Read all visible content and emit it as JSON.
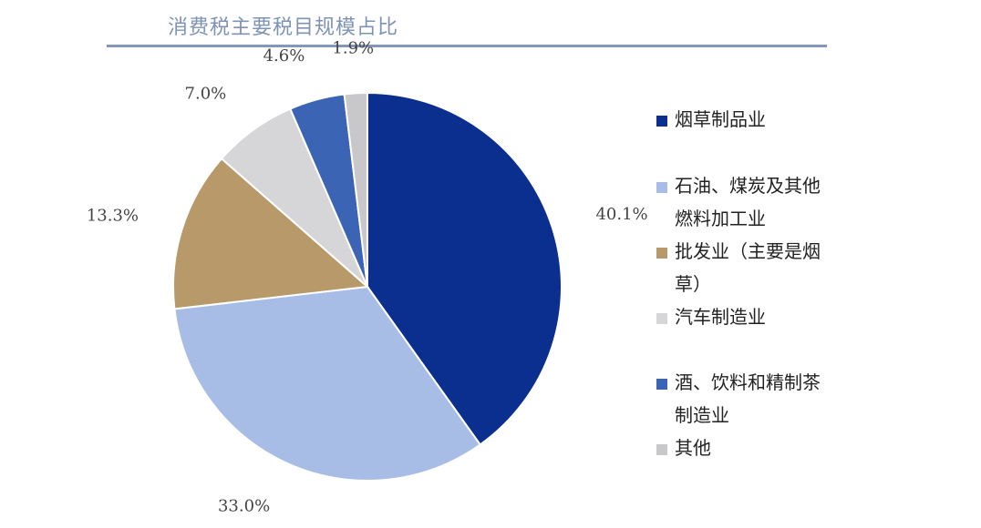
{
  "chart_data": {
    "type": "pie",
    "title": "消费税主要税目规模占比",
    "legend_position": "right",
    "slices": [
      {
        "label": "烟草制品业",
        "value": 40.1,
        "value_label": "40.1%",
        "color": "#0a2f8e"
      },
      {
        "label": "石油、煤炭及其他燃料加工业",
        "value": 33.0,
        "value_label": "33.0%",
        "color": "#a8bde6"
      },
      {
        "label": "批发业（主要是烟草）",
        "value": 13.3,
        "value_label": "13.3%",
        "color": "#b8996a"
      },
      {
        "label": "汽车制造业",
        "value": 7.0,
        "value_label": "7.0%",
        "color": "#d6d6d8"
      },
      {
        "label": "酒、饮料和精制茶制造业",
        "value": 4.6,
        "value_label": "4.6%",
        "color": "#3c64b4"
      },
      {
        "label": "其他",
        "value": 1.9,
        "value_label": "1.9%",
        "color": "#c8c8ca"
      }
    ]
  }
}
